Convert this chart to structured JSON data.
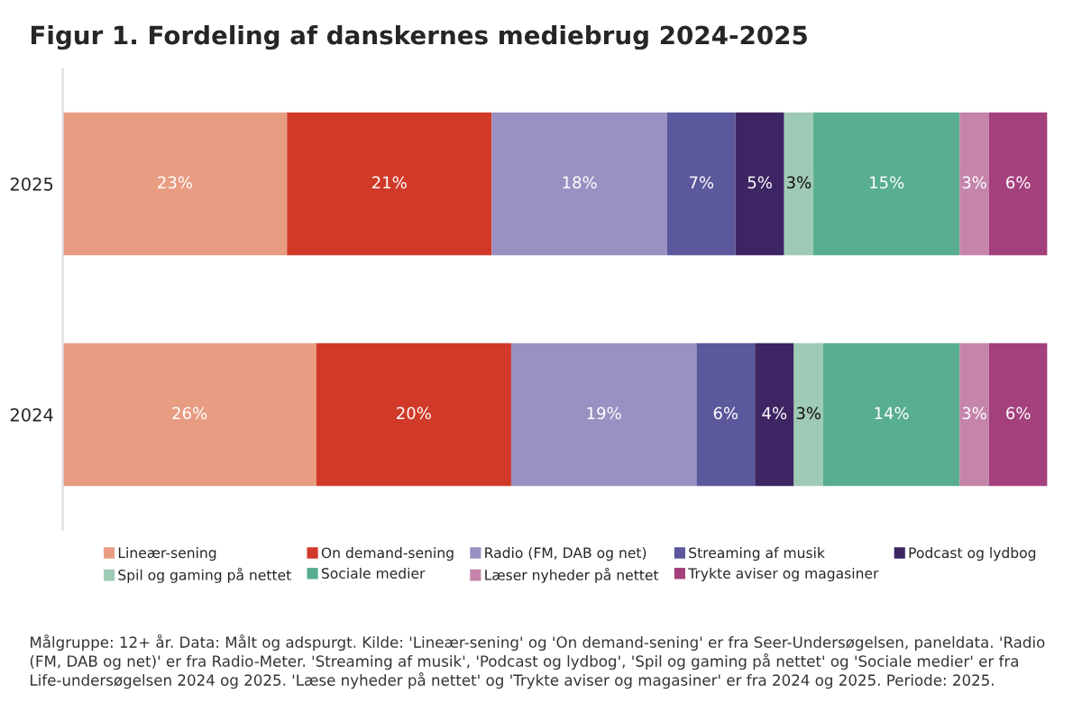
{
  "chart_data": {
    "type": "bar",
    "orientation": "horizontal",
    "stacked": true,
    "title": "Figur 1. Fordeling af danskernes mediebrug 2024-2025",
    "categories": [
      "2025",
      "2024"
    ],
    "series": [
      {
        "name": "Lineær-sening",
        "color": "#e89c82",
        "values": [
          23,
          26
        ],
        "value_labels": [
          "23%",
          "26%"
        ]
      },
      {
        "name": "On demand-sening",
        "color": "#d13a28",
        "values": [
          21,
          20
        ],
        "value_labels": [
          "21%",
          "20%"
        ]
      },
      {
        "name": "Radio (FM, DAB og net)",
        "color": "#9b90c2",
        "values": [
          18,
          19
        ],
        "value_labels": [
          "18%",
          "19%"
        ]
      },
      {
        "name": "Streaming af musik",
        "color": "#5b589c",
        "values": [
          7,
          6
        ],
        "value_labels": [
          "7%",
          "6%"
        ]
      },
      {
        "name": "Podcast og lydbog",
        "color": "#3d2563",
        "values": [
          5,
          4
        ],
        "value_labels": [
          "5%",
          "4%"
        ]
      },
      {
        "name": "Spil og gaming på nettet",
        "color": "#9fcab5",
        "values": [
          3,
          3
        ],
        "value_labels": [
          "3%",
          "3%"
        ]
      },
      {
        "name": "Sociale medier",
        "color": "#58ae8e",
        "values": [
          15,
          14
        ],
        "value_labels": [
          "15%",
          "14%"
        ]
      },
      {
        "name": "Læser nyheder på nettet",
        "color": "#c585aa",
        "values": [
          3,
          3
        ],
        "value_labels": [
          "3%",
          "3%"
        ]
      },
      {
        "name": "Trykte aviser og magasiner",
        "color": "#a4407c",
        "values": [
          6,
          6
        ],
        "value_labels": [
          "6%",
          "6%"
        ]
      }
    ],
    "legend": "bottom",
    "grid": false,
    "tick_labels": "y",
    "annotations": [
      "Målgruppe: 12+ år. Data: Målt og adspurgt. Kilde: 'Lineær-sening' og 'On demand-sening' er fra Seer-Undersøgelsen, paneldata. 'Radio (FM, DAB og net)' er fra Radio-Meter. 'Streaming af musik', 'Podcast og lydbog', 'Spil og gaming på nettet' og 'Sociale medier' er fra Life-undersøgelsen 2024 og 2025. 'Læse nyheder på nettet' og 'Trykte aviser og magasiner' er fra 2024 og 2025. Periode: 2025."
    ]
  }
}
